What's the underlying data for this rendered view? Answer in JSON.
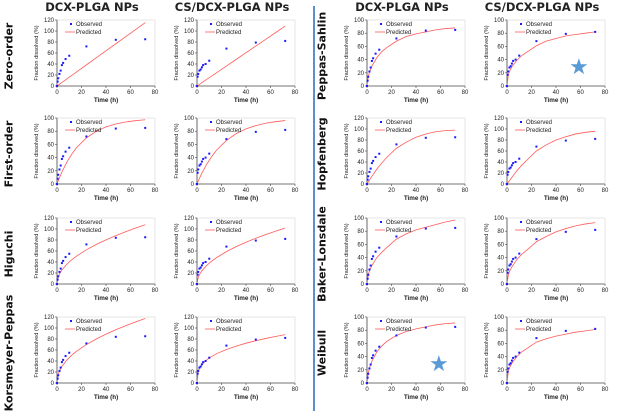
{
  "column_headers": [
    "DCX-PLGA NPs",
    "CS/DCX-PLGA NPs",
    "DCX-PLGA NPs",
    "CS/DCX-PLGA NPs"
  ],
  "colors": {
    "observed": "#1a1aff",
    "predicted": "#ff5a5a",
    "divider": "#5b8fd0",
    "star": "#5b9bd5"
  },
  "chart_data": {
    "type": "scatter",
    "xlabel": "Time (h)",
    "ylabel": "Fraction dissolved (%)",
    "legend": [
      "Observed",
      "Predicted"
    ],
    "legend_placement": "top-left",
    "xlim": [
      0,
      80
    ],
    "xticks": [
      0,
      20,
      40,
      60,
      80
    ],
    "observed_time": [
      0,
      0.5,
      1,
      2,
      3,
      4,
      5,
      7,
      10,
      24,
      48,
      72
    ],
    "observed": {
      "DCX-PLGA NPs": [
        0,
        8,
        14,
        22,
        28,
        38,
        42,
        49,
        55,
        72,
        84,
        85
      ],
      "CS/DCX-PLGA NPs": [
        0,
        17,
        22,
        28,
        30,
        34,
        38,
        40,
        46,
        68,
        79,
        82
      ]
    },
    "predicted_time": [
      0,
      1,
      2,
      4,
      8,
      12,
      16,
      24,
      32,
      40,
      48,
      56,
      64,
      72
    ],
    "models": [
      {
        "name": "Zero-order",
        "ylim": [
          0,
          120
        ],
        "predicted": {
          "DCX-PLGA NPs": [
            0,
            1.6,
            3.2,
            6.4,
            12.8,
            19.2,
            25.6,
            38.4,
            51.2,
            64,
            76.8,
            89.6,
            102.4,
            115.2
          ],
          "CS/DCX-PLGA NPs": [
            0,
            1.5,
            3,
            6,
            12.1,
            18.1,
            24.2,
            36.3,
            48.4,
            60.5,
            72.6,
            84.7,
            96.8,
            108.9
          ]
        }
      },
      {
        "name": "First-order",
        "ylim": [
          0,
          100
        ],
        "predicted": {
          "DCX-PLGA NPs": [
            0,
            4.9,
            9.5,
            18.1,
            33,
            45.1,
            55.1,
            69.9,
            79.8,
            86.5,
            90.9,
            93.9,
            95.9,
            97.3
          ],
          "CS/DCX-PLGA NPs": [
            0,
            4.4,
            8.6,
            16.5,
            30.2,
            41.7,
            51.3,
            66,
            76.3,
            83.5,
            88.5,
            92,
            94.4,
            96.1
          ]
        }
      },
      {
        "name": "Higuchi",
        "ylim": [
          0,
          120
        ],
        "predicted": {
          "DCX-PLGA NPs": [
            0,
            12.7,
            18,
            25.4,
            35.9,
            44,
            50.8,
            62.2,
            71.8,
            80.3,
            88,
            95,
            101.6,
            107.8
          ],
          "CS/DCX-PLGA NPs": [
            0,
            12,
            17,
            24,
            33.9,
            41.6,
            48,
            58.8,
            67.9,
            75.9,
            83.1,
            89.8,
            96,
            101.8
          ]
        }
      },
      {
        "name": "Korsmeyer-Peppas",
        "ylim": [
          0,
          120
        ],
        "predicted": {
          "DCX-PLGA NPs": [
            0,
            15.7,
            21.7,
            30.1,
            41.7,
            50.5,
            57.8,
            69.9,
            80,
            88.9,
            96.9,
            104.1,
            111,
            117.3
          ],
          "CS/DCX-PLGA NPs": [
            0,
            21.1,
            26.6,
            33.5,
            42.2,
            48.3,
            53.3,
            61,
            67.1,
            72.4,
            76.8,
            81,
            84.6,
            88
          ]
        }
      },
      {
        "name": "Peppas-Sahlin",
        "ylim": [
          0,
          100
        ],
        "predicted": {
          "DCX-PLGA NPs": [
            0,
            14,
            21,
            30,
            43,
            52,
            58,
            68,
            75,
            79,
            82,
            85,
            87,
            88
          ],
          "CS/DCX-PLGA NPs": [
            0,
            16,
            22,
            29,
            39,
            46,
            51,
            61,
            68,
            72,
            76,
            78,
            80,
            82
          ]
        },
        "star": "CS/DCX-PLGA NPs"
      },
      {
        "name": "Hopfenberg",
        "ylim": [
          0,
          120
        ],
        "predicted": {
          "DCX-PLGA NPs": [
            0,
            3.5,
            7,
            14,
            27,
            38,
            48,
            65,
            76,
            85,
            91,
            95,
            97,
            98
          ],
          "CS/DCX-PLGA NPs": [
            0,
            3,
            6,
            12,
            24,
            34,
            43,
            60,
            71,
            80,
            86,
            91,
            94,
            96
          ]
        }
      },
      {
        "name": "Baker-Lonsdale",
        "ylim": [
          0,
          100
        ],
        "predicted": {
          "DCX-PLGA NPs": [
            0,
            14,
            20,
            28,
            40,
            48,
            55,
            68,
            76,
            82,
            86,
            90,
            94,
            97
          ],
          "CS/DCX-PLGA NPs": [
            0,
            13,
            19,
            26,
            37,
            45,
            51,
            64,
            72,
            79,
            84,
            88,
            91,
            93
          ]
        }
      },
      {
        "name": "Weibull",
        "ylim": [
          0,
          100
        ],
        "predicted": {
          "DCX-PLGA NPs": [
            0,
            15,
            23,
            33,
            47,
            56,
            63,
            72,
            78,
            82,
            85,
            88,
            90,
            91
          ],
          "CS/DCX-PLGA NPs": [
            0,
            17,
            23,
            30,
            40,
            47,
            52,
            62,
            67,
            71,
            74,
            77,
            79,
            81
          ]
        },
        "star": "DCX-PLGA NPs"
      }
    ]
  }
}
